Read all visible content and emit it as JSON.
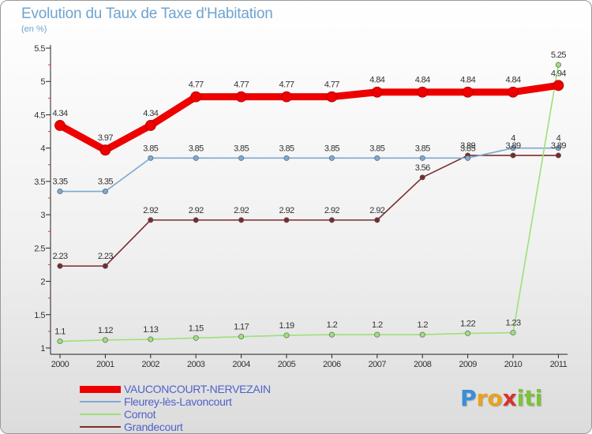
{
  "chart_data": {
    "type": "line",
    "title": "Evolution du Taux de Taxe d'Habitation",
    "subtitle": "(en %)",
    "xlabel": "",
    "ylabel": "",
    "categories": [
      "2000",
      "2001",
      "2002",
      "2003",
      "2004",
      "2005",
      "2006",
      "2007",
      "2008",
      "2009",
      "2010",
      "2011"
    ],
    "ylim": [
      1,
      5.5
    ],
    "yticks": [
      "1",
      "1.5",
      "2",
      "2.5",
      "3",
      "3.5",
      "4",
      "4.5",
      "5",
      "5.5"
    ],
    "grid": true,
    "series": [
      {
        "name": "VAUCONCOURT-NERVEZAIN",
        "color": "#ee0000",
        "values": [
          4.34,
          3.97,
          4.34,
          4.77,
          4.77,
          4.77,
          4.77,
          4.84,
          4.84,
          4.84,
          4.84,
          4.94
        ],
        "labels": [
          "4.34",
          "3.97",
          "4.34",
          "4.77",
          "4.77",
          "4.77",
          "4.77",
          "4.84",
          "4.84",
          "4.84",
          "4.84",
          "4.94"
        ]
      },
      {
        "name": "Fleurey-lès-Lavoncourt",
        "color": "#7ba9d2",
        "values": [
          3.35,
          3.35,
          3.85,
          3.85,
          3.85,
          3.85,
          3.85,
          3.85,
          3.85,
          3.85,
          4,
          4
        ],
        "labels": [
          "3.35",
          "3.35",
          "3.85",
          "3.85",
          "3.85",
          "3.85",
          "3.85",
          "3.85",
          "3.85",
          "3.85",
          "4",
          "4"
        ]
      },
      {
        "name": "Cornot",
        "color": "#9ee07a",
        "values": [
          1.1,
          1.12,
          1.13,
          1.15,
          1.17,
          1.19,
          1.2,
          1.2,
          1.2,
          1.22,
          1.23,
          5.25
        ],
        "labels": [
          "1.1",
          "1.12",
          "1.13",
          "1.15",
          "1.17",
          "1.19",
          "1.2",
          "1.2",
          "1.2",
          "1.22",
          "1.23",
          "5.25"
        ]
      },
      {
        "name": "Grandecourt",
        "color": "#7a2c2c",
        "values": [
          2.23,
          2.23,
          2.92,
          2.92,
          2.92,
          2.92,
          2.92,
          2.92,
          3.56,
          3.89,
          3.89,
          3.89
        ],
        "labels": [
          "2.23",
          "2.23",
          "2.92",
          "2.92",
          "2.92",
          "2.92",
          "2.92",
          "2.92",
          "3.56",
          "3.89",
          "3.89",
          "3.89"
        ]
      }
    ]
  },
  "legend": {
    "items": [
      "VAUCONCOURT-NERVEZAIN",
      "Fleurey-lès-Lavoncourt",
      "Cornot",
      "Grandecourt"
    ]
  },
  "logo": {
    "letters": [
      "P",
      "r",
      "o",
      "x",
      "i",
      "t",
      "i"
    ],
    "colors": [
      "#3a8ed6",
      "#e8a21c",
      "#e8a21c",
      "#d8322e",
      "#7cc23a",
      "#7cc23a",
      "#7cc23a"
    ]
  }
}
